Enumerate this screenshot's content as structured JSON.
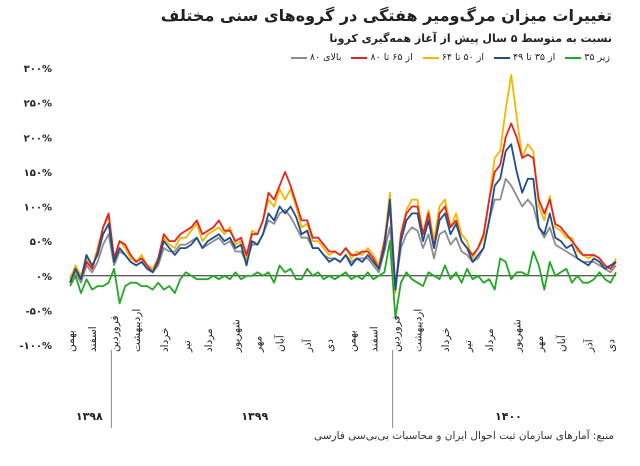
{
  "title": "تغییرات میزان مرگ‌ومیر هفتگی در گروه‌های سنی مختلف",
  "subtitle": "نسبت به متوسط ۵ سال پیش از آغاز همه‌گیری کرونا",
  "source": "منبع: آمارهای سازمان ثبت احوال ایران و محاسبات بی‌بی‌سی فارسی",
  "chart_data": {
    "type": "line",
    "y_tick_labels": [
      "۳۰۰%",
      "۲۵۰%",
      "۲۰۰%",
      "۱۵۰%",
      "۱۰۰%",
      "۵۰%",
      "۰%",
      "-۵۰%",
      "-۱۰۰%"
    ],
    "y_ticks": [
      300,
      250,
      200,
      150,
      100,
      50,
      0,
      -50,
      -100
    ],
    "ylim": [
      -100,
      300
    ],
    "month_labels": [
      "بهمن",
      "اسفند",
      "فروردین",
      "اردیبهشت",
      "خرداد",
      "تیر",
      "مرداد",
      "شهریور",
      "مهر",
      "آبان",
      "آذر",
      "دی",
      "بهمن",
      "اسفند",
      "فروردین",
      "اردیبهشت",
      "خرداد",
      "تیر",
      "مرداد",
      "شهریور",
      "مهر",
      "آبان",
      "آذر",
      "دی"
    ],
    "month_index": [
      0,
      4,
      8,
      12,
      17,
      21,
      25,
      30,
      34,
      38,
      43,
      47,
      51,
      55,
      59,
      63,
      68,
      72,
      76,
      81,
      85,
      89,
      94,
      98
    ],
    "year_labels": [
      {
        "label": "۱۳۹۸",
        "center": 3.5
      },
      {
        "label": "۱۳۹۹",
        "center": 33.5
      },
      {
        "label": "۱۴۰۰",
        "center": 79.5
      }
    ],
    "year_boundaries": [
      7.5,
      58.5
    ],
    "series": [
      {
        "name": "زیر ۳۵",
        "color": "#22a822",
        "values": [
          -15,
          0,
          -25,
          -5,
          -20,
          -15,
          -15,
          -10,
          10,
          -40,
          -15,
          -10,
          -10,
          -15,
          -15,
          -20,
          -10,
          -20,
          -15,
          -25,
          -5,
          5,
          0,
          -5,
          -5,
          -5,
          0,
          -5,
          0,
          -5,
          5,
          -5,
          0,
          0,
          5,
          0,
          5,
          -10,
          15,
          5,
          10,
          -5,
          -5,
          10,
          0,
          5,
          -5,
          0,
          -5,
          0,
          5,
          -5,
          0,
          -5,
          5,
          -5,
          0,
          5,
          50,
          -60,
          -10,
          5,
          -5,
          -10,
          -15,
          5,
          0,
          -5,
          15,
          -5,
          5,
          -10,
          10,
          -5,
          0,
          -10,
          -5,
          -20,
          25,
          20,
          -5,
          5,
          5,
          0,
          35,
          15,
          -20,
          20,
          0,
          5,
          10,
          -10,
          0,
          -10,
          -10,
          -5,
          5,
          -5,
          -10,
          5
        ]
      },
      {
        "name": "از ۳۵ تا ۴۹",
        "color": "#1f4e8c",
        "values": [
          -10,
          10,
          -5,
          30,
          15,
          30,
          60,
          75,
          20,
          40,
          30,
          20,
          15,
          20,
          10,
          5,
          20,
          50,
          40,
          30,
          40,
          40,
          45,
          55,
          40,
          50,
          55,
          60,
          50,
          55,
          40,
          45,
          15,
          50,
          45,
          60,
          90,
          80,
          100,
          90,
          100,
          85,
          60,
          65,
          40,
          40,
          30,
          20,
          25,
          20,
          30,
          15,
          25,
          20,
          30,
          20,
          10,
          40,
          110,
          -20,
          50,
          80,
          90,
          90,
          50,
          80,
          40,
          80,
          90,
          60,
          75,
          50,
          40,
          20,
          30,
          40,
          80,
          130,
          140,
          180,
          190,
          150,
          120,
          140,
          140,
          70,
          60,
          90,
          55,
          50,
          40,
          45,
          25,
          20,
          15,
          25,
          20,
          10,
          15,
          20
        ]
      },
      {
        "name": "از ۵۰ تا ۶۴",
        "color": "#f2b800",
        "values": [
          -5,
          15,
          0,
          25,
          10,
          40,
          70,
          85,
          25,
          50,
          40,
          25,
          20,
          30,
          15,
          10,
          25,
          55,
          45,
          40,
          55,
          55,
          65,
          75,
          50,
          60,
          65,
          70,
          60,
          70,
          45,
          50,
          25,
          65,
          60,
          80,
          110,
          100,
          125,
          110,
          125,
          100,
          70,
          75,
          50,
          50,
          40,
          30,
          35,
          30,
          40,
          25,
          35,
          30,
          40,
          30,
          15,
          50,
          120,
          -25,
          60,
          95,
          110,
          110,
          60,
          95,
          50,
          100,
          110,
          70,
          90,
          60,
          50,
          25,
          40,
          55,
          110,
          170,
          180,
          240,
          290,
          230,
          170,
          190,
          180,
          100,
          80,
          115,
          70,
          65,
          55,
          55,
          35,
          30,
          25,
          30,
          25,
          15,
          10,
          25
        ]
      },
      {
        "name": "از ۶۵ تا ۸۰",
        "color": "#e52421",
        "values": [
          -10,
          10,
          -5,
          20,
          10,
          35,
          70,
          90,
          25,
          50,
          45,
          30,
          20,
          25,
          15,
          5,
          25,
          60,
          50,
          50,
          60,
          65,
          70,
          80,
          60,
          65,
          70,
          80,
          65,
          65,
          50,
          55,
          30,
          60,
          60,
          80,
          120,
          110,
          130,
          150,
          130,
          105,
          80,
          80,
          55,
          55,
          45,
          35,
          35,
          30,
          40,
          30,
          30,
          35,
          35,
          25,
          10,
          50,
          100,
          -20,
          60,
          90,
          100,
          100,
          60,
          90,
          40,
          90,
          100,
          70,
          80,
          50,
          40,
          30,
          40,
          60,
          110,
          150,
          160,
          200,
          220,
          200,
          170,
          175,
          170,
          110,
          90,
          110,
          75,
          70,
          60,
          50,
          40,
          30,
          30,
          30,
          25,
          15,
          10,
          20
        ]
      },
      {
        "name": "بالای ۸۰",
        "color": "#8c8c8c",
        "values": [
          -5,
          5,
          -10,
          15,
          5,
          20,
          45,
          60,
          15,
          35,
          30,
          20,
          15,
          20,
          10,
          5,
          15,
          40,
          35,
          35,
          45,
          45,
          50,
          55,
          40,
          45,
          50,
          55,
          45,
          50,
          35,
          35,
          20,
          45,
          45,
          60,
          80,
          75,
          90,
          95,
          85,
          70,
          55,
          55,
          40,
          40,
          30,
          25,
          25,
          20,
          30,
          20,
          25,
          25,
          25,
          15,
          5,
          35,
          70,
          -15,
          40,
          60,
          70,
          65,
          40,
          60,
          25,
          60,
          65,
          45,
          55,
          35,
          30,
          20,
          25,
          40,
          80,
          110,
          110,
          140,
          130,
          115,
          100,
          110,
          100,
          70,
          55,
          70,
          45,
          40,
          35,
          30,
          25,
          20,
          20,
          20,
          15,
          10,
          5,
          15
        ]
      }
    ]
  }
}
